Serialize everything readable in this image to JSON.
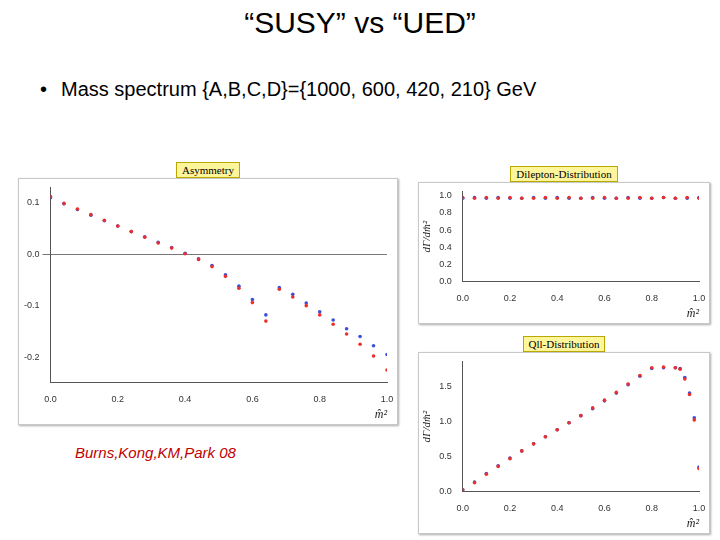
{
  "title": "“SUSY” vs “UED”",
  "bullet": "Mass spectrum {A,B,C,D}={1000, 600, 420, 210} GeV",
  "citation": "Burns,Kong,KM,Park 08",
  "chart_data": [
    {
      "type": "scatter",
      "title": "Asymmetry",
      "x_label": "m̂²",
      "marker": "circle",
      "grid": false,
      "x": [
        0,
        0.04,
        0.08,
        0.12,
        0.16,
        0.2,
        0.24,
        0.28,
        0.32,
        0.36,
        0.4,
        0.44,
        0.48,
        0.52,
        0.56,
        0.6,
        0.64,
        0.68,
        0.72,
        0.76,
        0.8,
        0.84,
        0.88,
        0.92,
        0.96,
        1.0
      ],
      "series": [
        {
          "color": "#e8302c",
          "values": [
            0.112,
            0.099,
            0.088,
            0.077,
            0.066,
            0.055,
            0.044,
            0.033,
            0.022,
            0.012,
            0.001,
            -0.01,
            -0.024,
            -0.043,
            -0.066,
            -0.094,
            -0.13,
            -0.068,
            -0.083,
            -0.1,
            -0.118,
            -0.136,
            -0.155,
            -0.175,
            -0.198,
            -0.225
          ]
        },
        {
          "color": "#3b4fd8",
          "values": [
            0.11,
            0.098,
            0.087,
            0.076,
            0.065,
            0.055,
            0.044,
            0.034,
            0.023,
            0.013,
            0.002,
            -0.009,
            -0.022,
            -0.04,
            -0.062,
            -0.088,
            -0.118,
            -0.065,
            -0.078,
            -0.095,
            -0.112,
            -0.128,
            -0.145,
            -0.16,
            -0.178,
            -0.195
          ]
        }
      ],
      "xlim": [
        0,
        1
      ],
      "ylim": [
        -0.25,
        0.13
      ],
      "xticks": [
        {
          "value": 0,
          "label": "0.0"
        },
        0.2,
        0.4,
        0.6,
        0.8,
        {
          "value": 1,
          "label": "1.0"
        }
      ],
      "yticks": [
        -0.2,
        -0.1,
        {
          "value": 0,
          "label": "0.0"
        },
        0.1
      ]
    },
    {
      "type": "scatter",
      "title": "Dilepton-Distribution",
      "x_label": "m̂²",
      "y_label": "dΓ/dm̂²",
      "marker": "circle",
      "grid": false,
      "x": [
        0,
        0.05,
        0.1,
        0.15,
        0.2,
        0.25,
        0.3,
        0.35,
        0.4,
        0.45,
        0.5,
        0.55,
        0.6,
        0.65,
        0.7,
        0.75,
        0.8,
        0.85,
        0.9,
        0.95,
        1.0
      ],
      "series": [
        {
          "color": "#e8302c",
          "values": [
            0.98,
            0.97,
            0.98,
            0.97,
            0.98,
            0.97,
            0.97,
            0.98,
            0.97,
            0.98,
            0.97,
            0.97,
            0.98,
            0.97,
            0.97,
            0.98,
            0.97,
            0.98,
            0.97,
            0.98,
            0.97
          ]
        },
        {
          "color": "#3b4fd8",
          "values": [
            0.97,
            0.98,
            0.97,
            0.98,
            0.97,
            0.97,
            0.98,
            0.97,
            0.98,
            0.97,
            0.97,
            0.98,
            0.97,
            0.97,
            0.98,
            0.97,
            0.97,
            0.98,
            0.97,
            0.97,
            0.98
          ]
        }
      ],
      "xlim": [
        0,
        1
      ],
      "ylim": [
        0,
        1.05
      ],
      "xticks": [
        {
          "value": 0,
          "label": "0.0"
        },
        0.2,
        0.4,
        0.6,
        0.8,
        {
          "value": 1,
          "label": "1.0"
        }
      ],
      "yticks": [
        {
          "value": 0,
          "label": "0.0"
        },
        0.2,
        0.4,
        0.6,
        0.8,
        {
          "value": 1,
          "label": "1.0"
        }
      ]
    },
    {
      "type": "scatter",
      "title": "Qll-Distribution",
      "x_label": "m̂²",
      "y_label": "dΓ/dm̂²",
      "marker": "circle",
      "grid": false,
      "x": [
        0,
        0.05,
        0.1,
        0.15,
        0.2,
        0.25,
        0.3,
        0.35,
        0.4,
        0.45,
        0.5,
        0.55,
        0.6,
        0.65,
        0.7,
        0.75,
        0.8,
        0.85,
        0.9,
        0.92,
        0.94,
        0.96,
        0.98,
        1.0
      ],
      "series": [
        {
          "color": "#e8302c",
          "values": [
            0.03,
            0.13,
            0.25,
            0.36,
            0.47,
            0.58,
            0.68,
            0.78,
            0.88,
            0.98,
            1.08,
            1.19,
            1.3,
            1.41,
            1.53,
            1.65,
            1.76,
            1.77,
            1.76,
            1.74,
            1.6,
            1.38,
            1.02,
            0.33
          ]
        },
        {
          "color": "#3b4fd8",
          "values": [
            0.03,
            0.14,
            0.26,
            0.37,
            0.48,
            0.58,
            0.68,
            0.78,
            0.88,
            0.98,
            1.08,
            1.18,
            1.29,
            1.4,
            1.52,
            1.64,
            1.75,
            1.76,
            1.76,
            1.75,
            1.62,
            1.4,
            1.05,
            0.35
          ]
        }
      ],
      "xlim": [
        0,
        1
      ],
      "ylim": [
        0,
        1.85
      ],
      "xticks": [
        {
          "value": 0,
          "label": "0.0"
        },
        0.2,
        0.4,
        0.6,
        0.8,
        {
          "value": 1,
          "label": "1.0"
        }
      ],
      "yticks": [
        {
          "value": 0,
          "label": "0.0"
        },
        0.5,
        {
          "value": 1,
          "label": "1.0"
        },
        1.5
      ]
    }
  ]
}
